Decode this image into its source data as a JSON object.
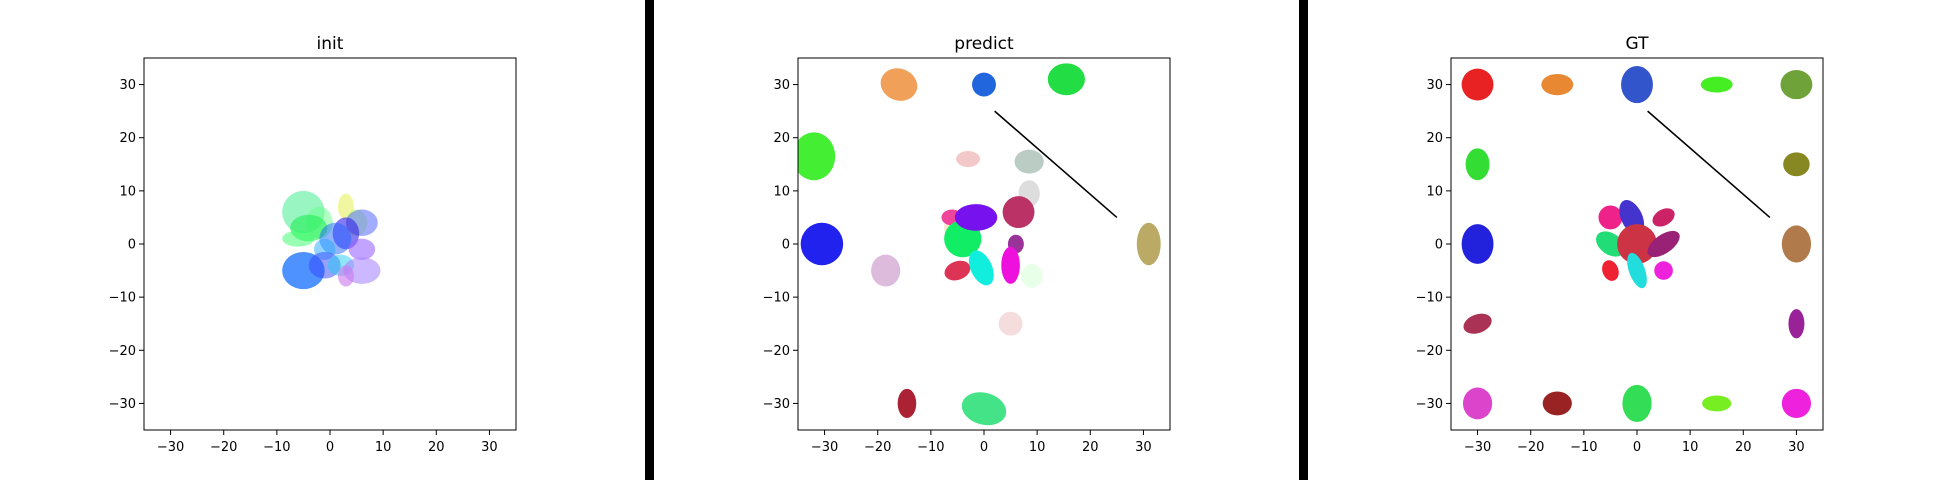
{
  "chart_data": [
    {
      "type": "scatter",
      "title": "init",
      "xlim": [
        -35,
        35
      ],
      "ylim": [
        -35,
        35
      ],
      "xticks": [
        -30,
        -20,
        -10,
        0,
        10,
        20,
        30
      ],
      "yticks": [
        -30,
        -20,
        -10,
        0,
        10,
        20,
        30
      ],
      "grid": false,
      "lines": [],
      "ellipses": [
        {
          "x": -5,
          "y": 6,
          "w": 8,
          "h": 8,
          "angle": 0,
          "color": "#55ee99",
          "alpha": 0.6
        },
        {
          "x": 3,
          "y": 7,
          "w": 3,
          "h": 5,
          "angle": 0,
          "color": "#e8f060",
          "alpha": 0.6
        },
        {
          "x": -2,
          "y": 4,
          "w": 5,
          "h": 6,
          "angle": 0,
          "color": "#66ff88",
          "alpha": 0.5
        },
        {
          "x": -4,
          "y": 3,
          "w": 7,
          "h": 5,
          "angle": 0,
          "color": "#22ee55",
          "alpha": 0.6
        },
        {
          "x": 5,
          "y": 4,
          "w": 4,
          "h": 5,
          "angle": 0,
          "color": "#bbff66",
          "alpha": 0.6
        },
        {
          "x": 6,
          "y": 4,
          "w": 6,
          "h": 5,
          "angle": 0,
          "color": "#6677ff",
          "alpha": 0.6
        },
        {
          "x": 3,
          "y": 2,
          "w": 5,
          "h": 6,
          "angle": 0,
          "color": "#3322ee",
          "alpha": 0.6
        },
        {
          "x": -6,
          "y": 1,
          "w": 6,
          "h": 3,
          "angle": 0,
          "color": "#33ff66",
          "alpha": 0.5
        },
        {
          "x": 1,
          "y": 1,
          "w": 6,
          "h": 6,
          "angle": 0,
          "color": "#2266ff",
          "alpha": 0.5
        },
        {
          "x": -1,
          "y": -1,
          "w": 4,
          "h": 4,
          "angle": 0,
          "color": "#22aaff",
          "alpha": 0.5
        },
        {
          "x": 6,
          "y": -1,
          "w": 5,
          "h": 4,
          "angle": 0,
          "color": "#9966ff",
          "alpha": 0.6
        },
        {
          "x": -5,
          "y": -5,
          "w": 8,
          "h": 7,
          "angle": 0,
          "color": "#2277ff",
          "alpha": 0.8
        },
        {
          "x": -1,
          "y": -4,
          "w": 6,
          "h": 5,
          "angle": 0,
          "color": "#3344ff",
          "alpha": 0.5
        },
        {
          "x": 2,
          "y": -4,
          "w": 5,
          "h": 4,
          "angle": 0,
          "color": "#22ccee",
          "alpha": 0.5
        },
        {
          "x": 6,
          "y": -5,
          "w": 7,
          "h": 5,
          "angle": 0,
          "color": "#aa88ff",
          "alpha": 0.6
        },
        {
          "x": 3,
          "y": -6,
          "w": 3,
          "h": 4,
          "angle": 0,
          "color": "#cc77ee",
          "alpha": 0.6
        }
      ]
    },
    {
      "type": "scatter",
      "title": "predict",
      "xlim": [
        -35,
        35
      ],
      "ylim": [
        -35,
        35
      ],
      "xticks": [
        -30,
        -20,
        -10,
        0,
        10,
        20,
        30
      ],
      "yticks": [
        -30,
        -20,
        -10,
        0,
        10,
        20,
        30
      ],
      "grid": false,
      "lines": [
        {
          "x": [
            2,
            25
          ],
          "y": [
            25,
            5
          ],
          "color": "#000000"
        }
      ],
      "ellipses": [
        {
          "x": -16,
          "y": 30,
          "w": 7,
          "h": 6,
          "angle": -20,
          "color": "#f0a058",
          "alpha": 1
        },
        {
          "x": 0,
          "y": 30,
          "w": 4.5,
          "h": 4.5,
          "angle": -30,
          "color": "#2266dd",
          "alpha": 1
        },
        {
          "x": 15.5,
          "y": 31,
          "w": 7,
          "h": 6,
          "angle": 0,
          "color": "#22dd44",
          "alpha": 1
        },
        {
          "x": -32,
          "y": 16.5,
          "w": 8,
          "h": 9,
          "angle": 0,
          "color": "#44ee33",
          "alpha": 1
        },
        {
          "x": -3,
          "y": 16,
          "w": 4.5,
          "h": 3,
          "angle": 0,
          "color": "#f2c8c8",
          "alpha": 1
        },
        {
          "x": 8.5,
          "y": 15.5,
          "w": 5.5,
          "h": 4.5,
          "angle": 0,
          "color": "#bbccc4",
          "alpha": 1
        },
        {
          "x": 8.5,
          "y": 9.5,
          "w": 4,
          "h": 5,
          "angle": 0,
          "color": "#dddddd",
          "alpha": 1
        },
        {
          "x": 6.5,
          "y": 6,
          "w": 6,
          "h": 6,
          "angle": 0,
          "color": "#bb3366",
          "alpha": 1
        },
        {
          "x": -5,
          "y": 3,
          "w": 5,
          "h": 6,
          "angle": 0,
          "color": "#f5e8cc",
          "alpha": 1
        },
        {
          "x": -6,
          "y": 5,
          "w": 4,
          "h": 3,
          "angle": 0,
          "color": "#ee4499",
          "alpha": 1
        },
        {
          "x": -4,
          "y": 1,
          "w": 7,
          "h": 7,
          "angle": 0,
          "color": "#11ee66",
          "alpha": 1
        },
        {
          "x": -1.5,
          "y": 5,
          "w": 8,
          "h": 5,
          "angle": 0,
          "color": "#7711ee",
          "alpha": 1
        },
        {
          "x": 6,
          "y": 0,
          "w": 3,
          "h": 3.5,
          "angle": 0,
          "color": "#993399",
          "alpha": 1
        },
        {
          "x": -30.5,
          "y": 0,
          "w": 8,
          "h": 8,
          "angle": 0,
          "color": "#2222ee",
          "alpha": 1
        },
        {
          "x": 31,
          "y": 0,
          "w": 4.5,
          "h": 8,
          "angle": 0,
          "color": "#bbaa66",
          "alpha": 1
        },
        {
          "x": -18.5,
          "y": -5,
          "w": 5.5,
          "h": 6,
          "angle": 0,
          "color": "#ddbbdd",
          "alpha": 1
        },
        {
          "x": -5,
          "y": -5,
          "w": 5,
          "h": 3.5,
          "angle": 20,
          "color": "#dd3355",
          "alpha": 1
        },
        {
          "x": -0.5,
          "y": -4.5,
          "w": 4,
          "h": 7,
          "angle": 25,
          "color": "#11eedd",
          "alpha": 1
        },
        {
          "x": 5,
          "y": -4,
          "w": 3.5,
          "h": 7,
          "angle": 0,
          "color": "#ee11dd",
          "alpha": 1
        },
        {
          "x": 9,
          "y": -6,
          "w": 4,
          "h": 4.5,
          "angle": 0,
          "color": "#e8ffe8",
          "alpha": 1
        },
        {
          "x": 5,
          "y": -15,
          "w": 4.5,
          "h": 4.5,
          "angle": 0,
          "color": "#f5dddd",
          "alpha": 1
        },
        {
          "x": -14.5,
          "y": -30,
          "w": 3.5,
          "h": 5.5,
          "angle": 0,
          "color": "#aa2233",
          "alpha": 1
        },
        {
          "x": 0,
          "y": -31,
          "w": 8.5,
          "h": 6,
          "angle": -15,
          "color": "#44e388",
          "alpha": 1
        }
      ]
    },
    {
      "type": "scatter",
      "title": "GT",
      "xlim": [
        -35,
        35
      ],
      "ylim": [
        -35,
        35
      ],
      "xticks": [
        -30,
        -20,
        -10,
        0,
        10,
        20,
        30
      ],
      "yticks": [
        -30,
        -20,
        -10,
        0,
        10,
        20,
        30
      ],
      "grid": false,
      "lines": [
        {
          "x": [
            2,
            25
          ],
          "y": [
            25,
            5
          ],
          "color": "#000000"
        }
      ],
      "ellipses": [
        {
          "x": -30,
          "y": 30,
          "w": 6,
          "h": 6,
          "angle": 0,
          "color": "#e82222",
          "alpha": 1
        },
        {
          "x": -15,
          "y": 30,
          "w": 6,
          "h": 4,
          "angle": 0,
          "color": "#e88833",
          "alpha": 1
        },
        {
          "x": 0,
          "y": 30,
          "w": 6,
          "h": 7,
          "angle": 0,
          "color": "#3355cc",
          "alpha": 1
        },
        {
          "x": 15,
          "y": 30,
          "w": 6,
          "h": 3,
          "angle": 0,
          "color": "#44ee22",
          "alpha": 1
        },
        {
          "x": 30,
          "y": 30,
          "w": 6,
          "h": 5.5,
          "angle": 0,
          "color": "#6fa33a",
          "alpha": 1
        },
        {
          "x": -30,
          "y": 15,
          "w": 4.5,
          "h": 6,
          "angle": 0,
          "color": "#33dd33",
          "alpha": 1
        },
        {
          "x": 30,
          "y": 15,
          "w": 5,
          "h": 4.5,
          "angle": 0,
          "color": "#888822",
          "alpha": 1
        },
        {
          "x": -30,
          "y": 0,
          "w": 6,
          "h": 7.5,
          "angle": 0,
          "color": "#2222dd",
          "alpha": 1
        },
        {
          "x": 30,
          "y": 0,
          "w": 5.5,
          "h": 7,
          "angle": 0,
          "color": "#b07a4a",
          "alpha": 1
        },
        {
          "x": -30,
          "y": -15,
          "w": 5.5,
          "h": 3.5,
          "angle": 20,
          "color": "#aa3355",
          "alpha": 1
        },
        {
          "x": 30,
          "y": -15,
          "w": 3,
          "h": 5.5,
          "angle": 0,
          "color": "#992299",
          "alpha": 1
        },
        {
          "x": -30,
          "y": -30,
          "w": 5.5,
          "h": 6,
          "angle": 0,
          "color": "#dd44cc",
          "alpha": 1
        },
        {
          "x": -15,
          "y": -30,
          "w": 5.5,
          "h": 4.5,
          "angle": 0,
          "color": "#992222",
          "alpha": 1
        },
        {
          "x": 0,
          "y": -30,
          "w": 5.5,
          "h": 7,
          "angle": 0,
          "color": "#33dd55",
          "alpha": 1
        },
        {
          "x": 15,
          "y": -30,
          "w": 5.5,
          "h": 3,
          "angle": 0,
          "color": "#77ee22",
          "alpha": 1
        },
        {
          "x": 30,
          "y": -30,
          "w": 5.5,
          "h": 5.5,
          "angle": 0,
          "color": "#ee22dd",
          "alpha": 1
        },
        {
          "x": -5,
          "y": 5,
          "w": 4.5,
          "h": 4.5,
          "angle": 0,
          "color": "#ee2288",
          "alpha": 1
        },
        {
          "x": -1,
          "y": 5,
          "w": 4,
          "h": 7,
          "angle": 25,
          "color": "#4433cc",
          "alpha": 1
        },
        {
          "x": 5,
          "y": 5,
          "w": 4.5,
          "h": 3,
          "angle": 30,
          "color": "#cc2266",
          "alpha": 1
        },
        {
          "x": -5,
          "y": 0,
          "w": 6,
          "h": 4,
          "angle": -35,
          "color": "#22dd77",
          "alpha": 1
        },
        {
          "x": 0,
          "y": 0,
          "w": 7.5,
          "h": 7.5,
          "angle": 0,
          "color": "#cc3344",
          "alpha": 1
        },
        {
          "x": 5,
          "y": 0,
          "w": 7,
          "h": 3.5,
          "angle": 35,
          "color": "#992277",
          "alpha": 1
        },
        {
          "x": -5,
          "y": -5,
          "w": 3,
          "h": 4,
          "angle": 20,
          "color": "#ee2233",
          "alpha": 1
        },
        {
          "x": 0,
          "y": -5,
          "w": 3,
          "h": 7,
          "angle": 20,
          "color": "#22dddd",
          "alpha": 1
        },
        {
          "x": 5,
          "y": -5,
          "w": 3.5,
          "h": 3.5,
          "angle": 0,
          "color": "#ee22dd",
          "alpha": 1
        }
      ]
    }
  ]
}
